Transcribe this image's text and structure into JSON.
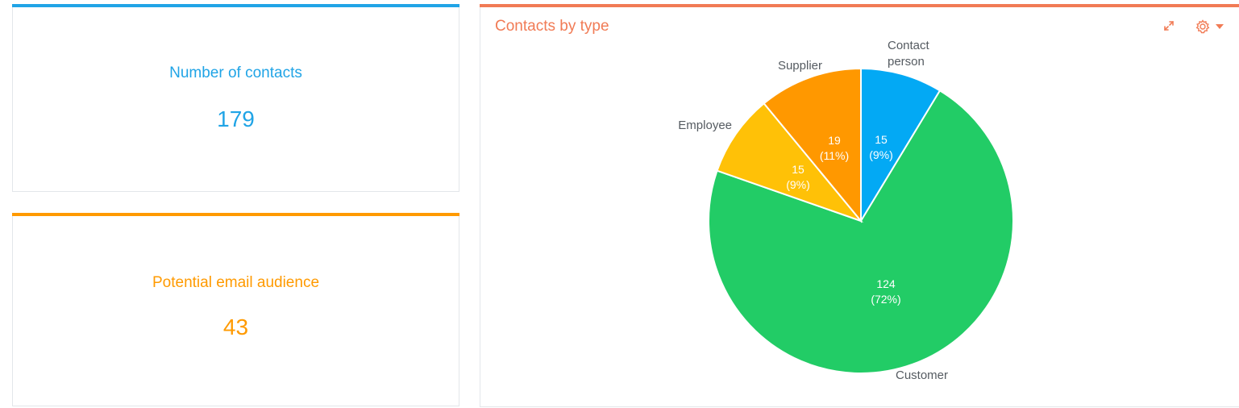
{
  "kpis": {
    "contacts": {
      "title": "Number of contacts",
      "value": "179",
      "color": "#20a4e6"
    },
    "audience": {
      "title": "Potential email audience",
      "value": "43",
      "color": "#ff9a00"
    }
  },
  "chart_panel": {
    "accent": "#f17b55",
    "toolbar_icons": [
      "expand-icon",
      "gear-icon",
      "caret-down-icon"
    ]
  },
  "chart_data": {
    "type": "pie",
    "title": "Contacts by type",
    "slices": [
      {
        "label": "Contact person",
        "value": 15,
        "percent": "9%",
        "color": "#03a9f4"
      },
      {
        "label": "Customer",
        "value": 124,
        "percent": "72%",
        "color": "#22cc66"
      },
      {
        "label": "Employee",
        "value": 15,
        "percent": "9%",
        "color": "#ffc107"
      },
      {
        "label": "Supplier",
        "value": 19,
        "percent": "11%",
        "color": "#ff9800"
      }
    ]
  }
}
